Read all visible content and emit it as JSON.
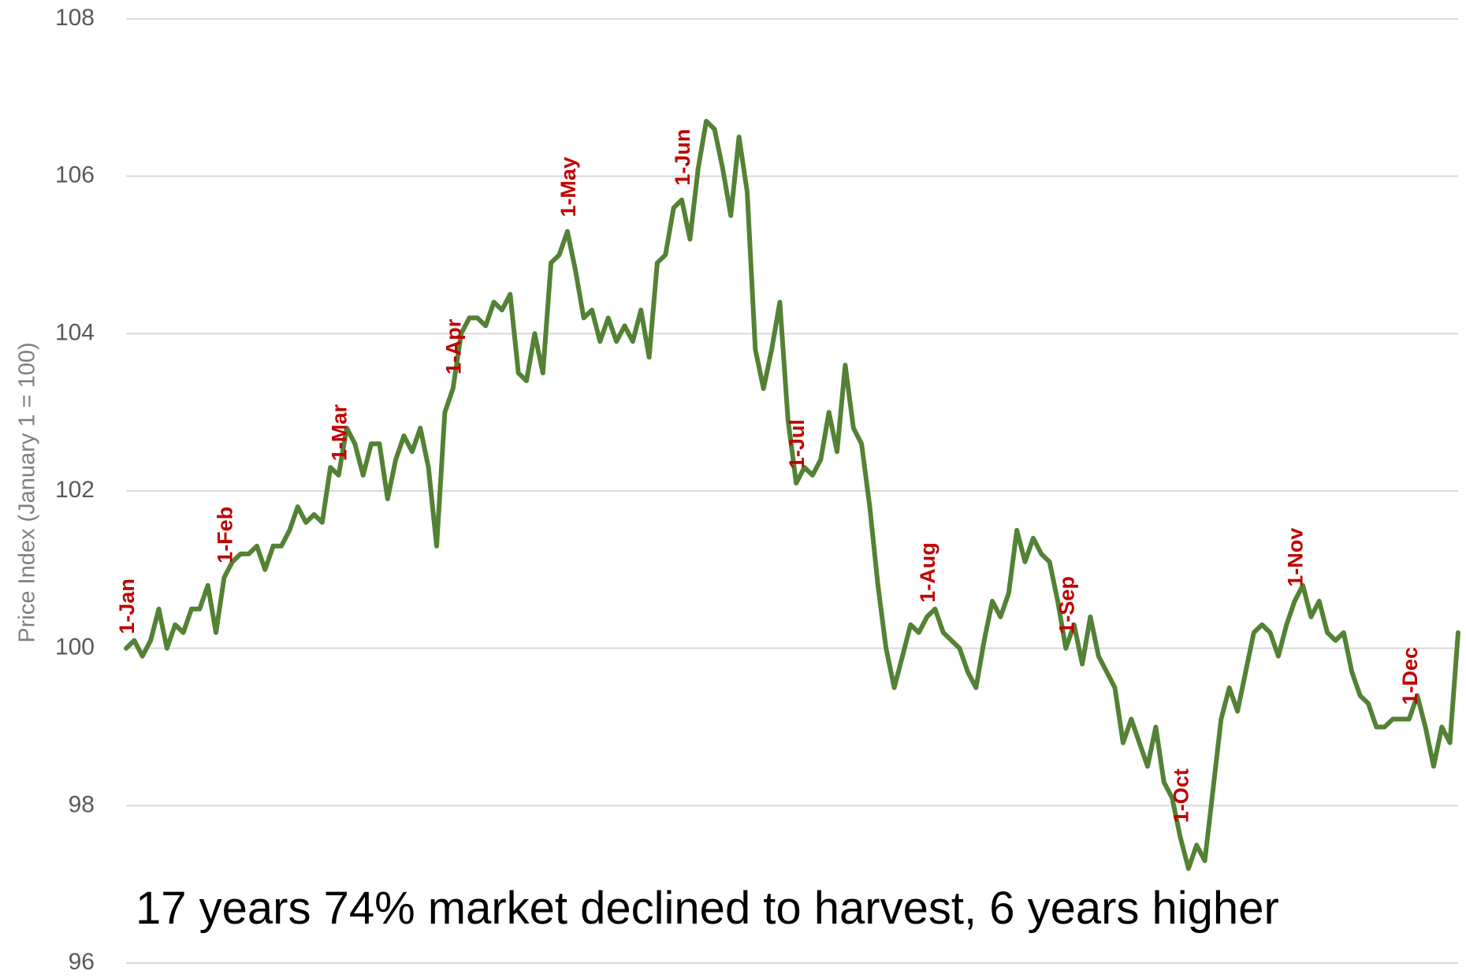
{
  "chart_data": {
    "type": "line",
    "y_axis_label": "Price Index (January 1 = 100)",
    "annotation": "17 years 74% market declined to harvest,  6 years higher",
    "color": "#548235",
    "label_color": "#c00000",
    "ylim": [
      96,
      108
    ],
    "yticks": [
      96,
      98,
      100,
      102,
      104,
      106,
      108
    ],
    "grid": true,
    "categories": [
      "1-Jan",
      null,
      null,
      null,
      null,
      null,
      null,
      null,
      null,
      null,
      null,
      null,
      "1-Feb",
      null,
      null,
      null,
      null,
      null,
      null,
      null,
      null,
      null,
      null,
      null,
      null,
      null,
      "1-Mar",
      null,
      null,
      null,
      null,
      null,
      null,
      null,
      null,
      null,
      null,
      null,
      null,
      null,
      "1-Apr",
      null,
      null,
      null,
      null,
      null,
      null,
      null,
      null,
      null,
      null,
      null,
      null,
      null,
      "1-May",
      null,
      null,
      null,
      null,
      null,
      null,
      null,
      null,
      null,
      null,
      null,
      null,
      null,
      "1-Jun",
      null,
      null,
      null,
      null,
      null,
      null,
      null,
      null,
      null,
      null,
      null,
      null,
      null,
      "1-Jul",
      null,
      null,
      null,
      null,
      null,
      null,
      null,
      null,
      null,
      null,
      null,
      null,
      null,
      null,
      null,
      "1-Aug",
      null,
      null,
      null,
      null,
      null,
      null,
      null,
      null,
      null,
      null,
      null,
      null,
      null,
      null,
      null,
      null,
      "1-Sep",
      null,
      null,
      null,
      null,
      null,
      null,
      null,
      null,
      null,
      null,
      null,
      null,
      null,
      "1-Oct",
      null,
      null,
      null,
      null,
      null,
      null,
      null,
      null,
      null,
      null,
      null,
      null,
      null,
      "1-Nov",
      null,
      null,
      null,
      null,
      null,
      null,
      null,
      null,
      null,
      null,
      null,
      null,
      null,
      "1-Dec",
      null,
      null,
      null,
      null,
      null,
      null
    ],
    "values": [
      100.0,
      100.1,
      99.9,
      100.1,
      100.5,
      100.0,
      100.3,
      100.2,
      100.5,
      100.5,
      100.8,
      100.2,
      100.9,
      101.1,
      101.2,
      101.2,
      101.3,
      101.0,
      101.3,
      101.3,
      101.5,
      101.8,
      101.6,
      101.7,
      101.6,
      102.3,
      102.2,
      102.8,
      102.6,
      102.2,
      102.6,
      102.6,
      101.9,
      102.4,
      102.7,
      102.5,
      102.8,
      102.3,
      101.3,
      103.0,
      103.3,
      104.0,
      104.2,
      104.2,
      104.1,
      104.4,
      104.3,
      104.5,
      103.5,
      103.4,
      104.0,
      103.5,
      104.9,
      105.0,
      105.3,
      104.8,
      104.2,
      104.3,
      103.9,
      104.2,
      103.9,
      104.1,
      103.9,
      104.3,
      103.7,
      104.9,
      105.0,
      105.6,
      105.7,
      105.2,
      106.1,
      106.7,
      106.6,
      106.1,
      105.5,
      106.5,
      105.8,
      103.8,
      103.3,
      103.8,
      104.4,
      102.9,
      102.1,
      102.3,
      102.2,
      102.4,
      103.0,
      102.5,
      103.6,
      102.8,
      102.6,
      101.8,
      100.8,
      100.0,
      99.5,
      99.9,
      100.3,
      100.2,
      100.4,
      100.5,
      100.2,
      100.1,
      100.0,
      99.7,
      99.5,
      100.1,
      100.6,
      100.4,
      100.7,
      101.5,
      101.1,
      101.4,
      101.2,
      101.1,
      100.6,
      100.0,
      100.3,
      99.8,
      100.4,
      99.9,
      99.7,
      99.5,
      98.8,
      99.1,
      98.8,
      98.5,
      99.0,
      98.3,
      98.1,
      97.6,
      97.2,
      97.5,
      97.3,
      98.2,
      99.1,
      99.5,
      99.2,
      99.7,
      100.2,
      100.3,
      100.2,
      99.9,
      100.3,
      100.6,
      100.8,
      100.4,
      100.6,
      100.2,
      100.1,
      100.2,
      99.7,
      99.4,
      99.3,
      99.0,
      99.0,
      99.1,
      99.1,
      99.1,
      99.4,
      99.0,
      98.5,
      99.0,
      98.8,
      100.2
    ]
  }
}
